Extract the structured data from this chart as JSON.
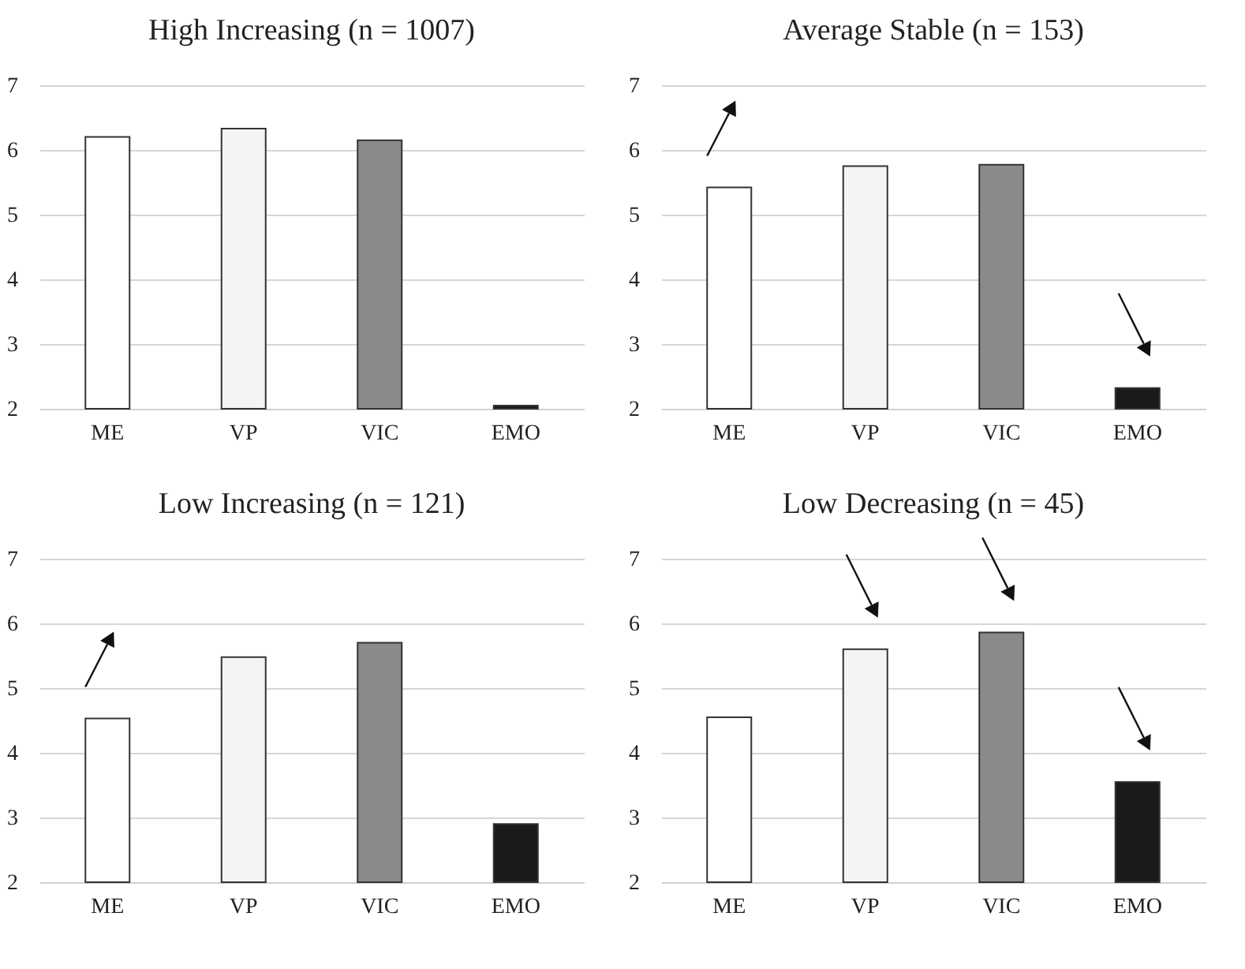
{
  "chart_data": [
    {
      "type": "bar",
      "title": "High Increasing (n = 1007)",
      "categories": [
        "ME",
        "VP",
        "VIC",
        "EMO"
      ],
      "values": [
        6.2,
        6.33,
        6.15,
        2.05
      ],
      "colors": [
        "#ffffff",
        "#f4f4f4",
        "#8a8a8a",
        "#1a1a1a"
      ],
      "ylim": [
        2,
        7
      ],
      "yticks": [
        2,
        3,
        4,
        5,
        6,
        7
      ],
      "grid": "y"
    },
    {
      "type": "bar",
      "title": "Average Stable (n = 153)",
      "categories": [
        "ME",
        "VP",
        "VIC",
        "EMO"
      ],
      "values": [
        5.42,
        5.75,
        5.77,
        2.32
      ],
      "colors": [
        "#ffffff",
        "#f4f4f4",
        "#8a8a8a",
        "#1a1a1a"
      ],
      "ylim": [
        2,
        7
      ],
      "yticks": [
        2,
        3,
        4,
        5,
        6,
        7
      ],
      "grid": "y"
    },
    {
      "type": "bar",
      "title": "Low Increasing (n = 121)",
      "categories": [
        "ME",
        "VP",
        "VIC",
        "EMO"
      ],
      "values": [
        4.53,
        5.48,
        5.7,
        2.9
      ],
      "colors": [
        "#ffffff",
        "#f4f4f4",
        "#8a8a8a",
        "#1a1a1a"
      ],
      "ylim": [
        2,
        7
      ],
      "yticks": [
        2,
        3,
        4,
        5,
        6,
        7
      ],
      "grid": "y"
    },
    {
      "type": "bar",
      "title": "Low Decreasing (n = 45)",
      "categories": [
        "ME",
        "VP",
        "VIC",
        "EMO"
      ],
      "values": [
        4.55,
        5.6,
        5.86,
        3.55
      ],
      "colors": [
        "#ffffff",
        "#f4f4f4",
        "#8a8a8a",
        "#1a1a1a"
      ],
      "ylim": [
        2,
        7
      ],
      "yticks": [
        2,
        3,
        4,
        5,
        6,
        7
      ],
      "grid": "y"
    }
  ]
}
